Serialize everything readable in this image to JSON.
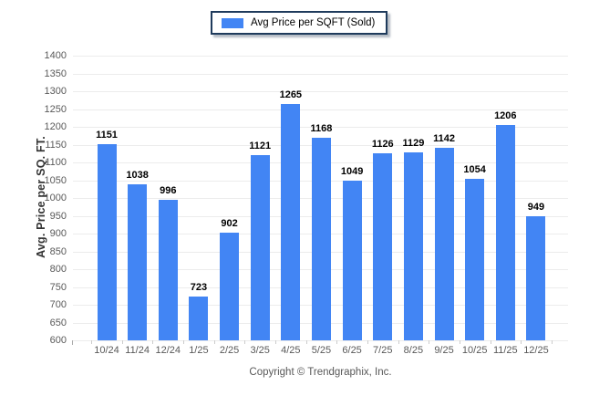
{
  "legend": {
    "label": "Avg Price per SQFT (Sold)",
    "swatch_color": "#4285f4"
  },
  "chart_data": {
    "type": "bar",
    "title": "",
    "series_name": "Avg Price per SQFT (Sold)",
    "categories": [
      "10/24",
      "11/24",
      "12/24",
      "1/25",
      "2/25",
      "3/25",
      "4/25",
      "5/25",
      "6/25",
      "7/25",
      "8/25",
      "9/25",
      "10/25",
      "11/25",
      "12/25"
    ],
    "values": [
      1151,
      1038,
      996,
      723,
      902,
      1121,
      1265,
      1168,
      1049,
      1126,
      1129,
      1142,
      1054,
      1206,
      949
    ],
    "xlabel": "",
    "ylabel": "Avg. Price per SQ. FT.",
    "ylim": [
      600,
      1400
    ],
    "ytick_step": 50,
    "grid": true,
    "legend_position": "top-center",
    "bar_color": "#4285f4",
    "gridline_color": "#ececec",
    "tick_text_color": "#595959",
    "value_label_color": "#000000",
    "legend_border_color": "#1f3b5c"
  },
  "footer": {
    "copyright": "Copyright © Trendgraphix, Inc."
  }
}
